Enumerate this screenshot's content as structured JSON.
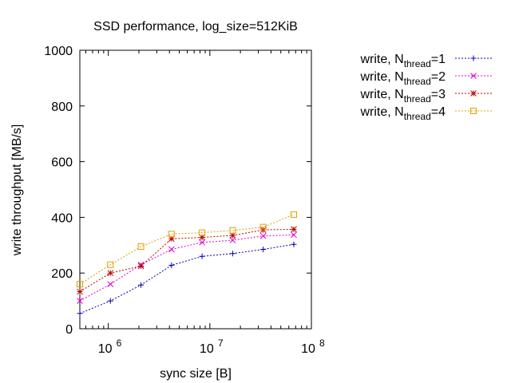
{
  "chart_data": {
    "type": "line",
    "title": "SSD performance, log_size=512KiB",
    "xlabel": "sync size [B]",
    "ylabel": "write throughput [MB/s]",
    "xscale": "log",
    "xlim": [
      524288,
      100000000
    ],
    "ylim": [
      0,
      1000
    ],
    "yticks": [
      0,
      200,
      400,
      600,
      800,
      1000
    ],
    "ytick_labels": [
      "0",
      "200",
      "400",
      "600",
      "800",
      "1000"
    ],
    "xticks": [
      1000000,
      10000000,
      100000000
    ],
    "xtick_labels": [
      {
        "base": "10",
        "exp": "6"
      },
      {
        "base": "10",
        "exp": "7"
      },
      {
        "base": "10",
        "exp": "8"
      }
    ],
    "grid": false,
    "legend_position": "outside-top-right",
    "x": [
      524288,
      1048576,
      2097152,
      4194304,
      8388608,
      16777216,
      33554432,
      67108864
    ],
    "series": [
      {
        "name": "write, N",
        "sub": "thread",
        "suffix": "=1",
        "color": "#0000c0",
        "marker": "plus",
        "values": [
          55,
          100,
          157,
          228,
          260,
          270,
          285,
          303
        ]
      },
      {
        "name": "write, N",
        "sub": "thread",
        "suffix": "=2",
        "color": "#e000e0",
        "marker": "cross",
        "values": [
          100,
          160,
          230,
          285,
          310,
          318,
          333,
          337
        ]
      },
      {
        "name": "write, N",
        "sub": "thread",
        "suffix": "=3",
        "color": "#c00000",
        "marker": "star",
        "values": [
          133,
          200,
          225,
          323,
          328,
          335,
          355,
          357
        ]
      },
      {
        "name": "write, N",
        "sub": "thread",
        "suffix": "=4",
        "color": "#e0a000",
        "marker": "square",
        "values": [
          160,
          230,
          295,
          340,
          345,
          353,
          365,
          410
        ]
      }
    ]
  }
}
